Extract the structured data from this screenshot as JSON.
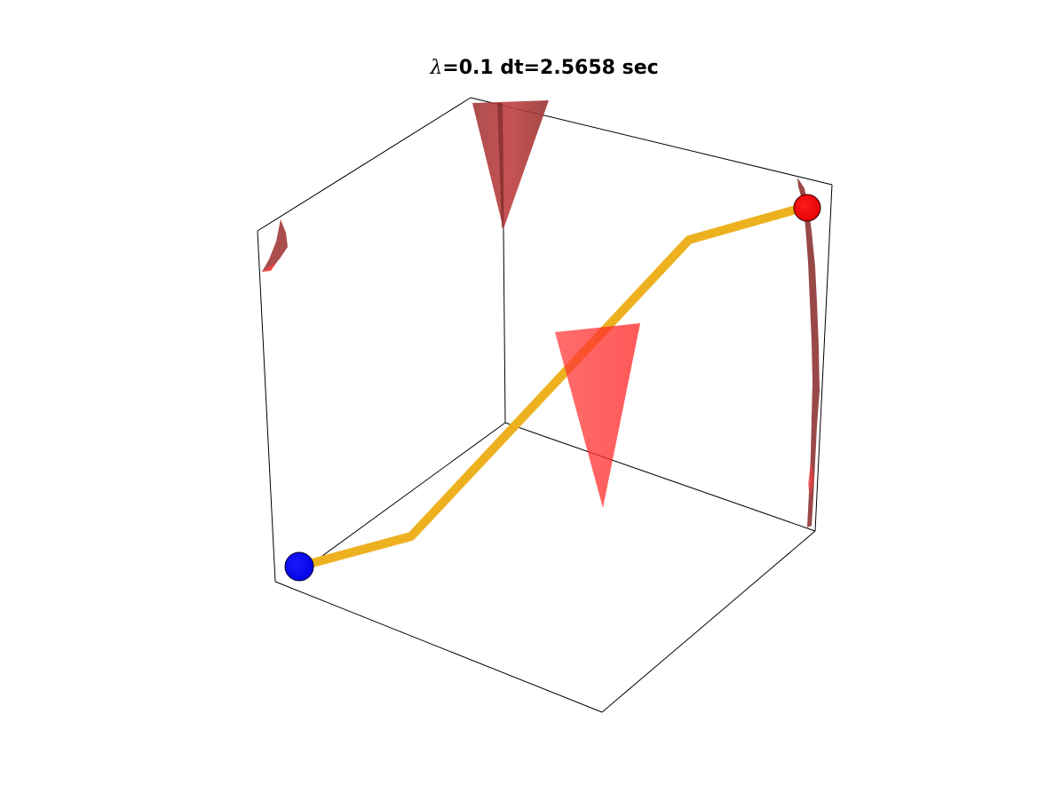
{
  "title": {
    "symbol": "λ",
    "text": "=0.1 dt=2.5658 sec"
  },
  "colors": {
    "obstacle_fill": "#ff2a2a",
    "obstacle_shade": "#8b2a2a",
    "path": "#edb120",
    "start_marker": "#0000ff",
    "goal_marker": "#ff0000",
    "box_edges": "#000000"
  }
}
